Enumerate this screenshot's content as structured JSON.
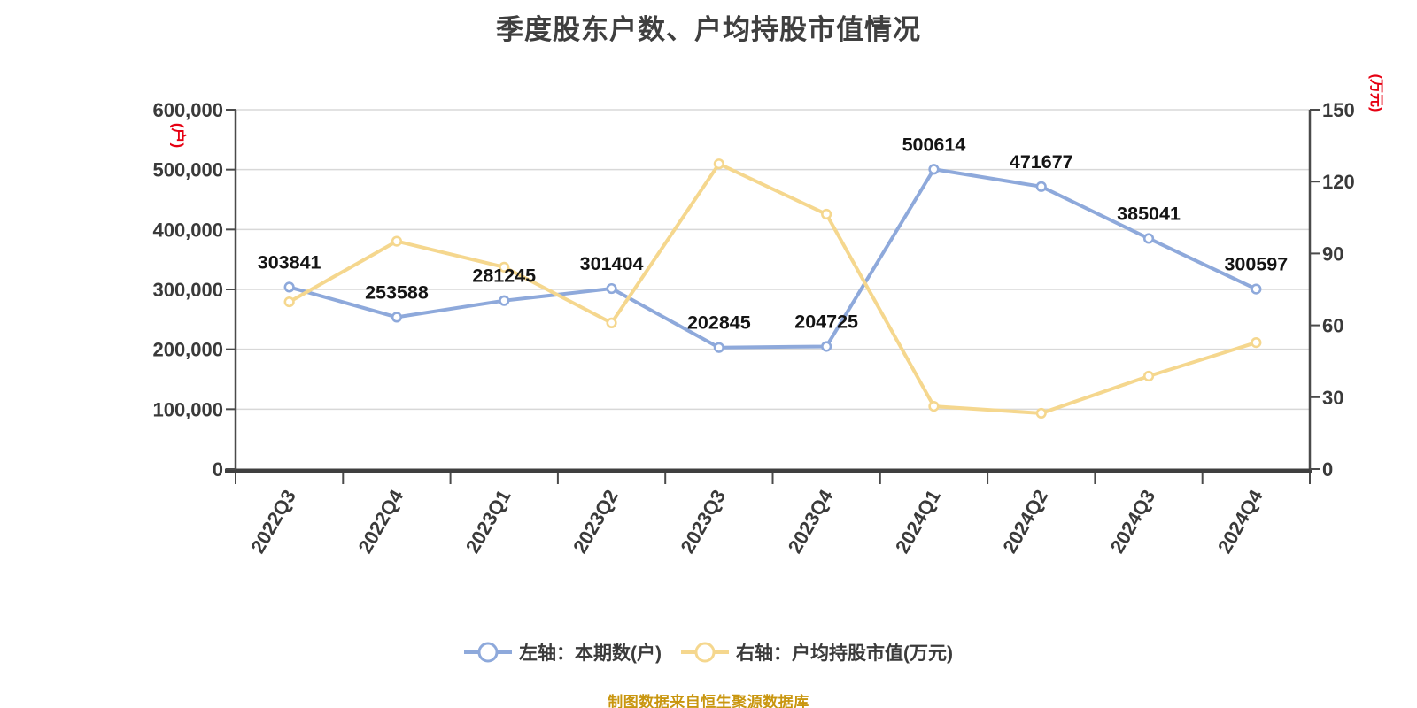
{
  "title": "季度股东户数、户均持股市值情况",
  "source_note": "制图数据来自恒生聚源数据库",
  "legend": {
    "items": [
      {
        "label": "左轴：本期数(户)"
      },
      {
        "label": "右轴：户均持股市值(万元)"
      }
    ]
  },
  "colors": {
    "series_blue": "#8EA9DB",
    "series_yellow": "#F5D78E",
    "axis_unit_red": "#E60012",
    "source_gold": "#C9960F",
    "title_gray": "#3F3F3F",
    "axis_label_gray": "#3A3A3A",
    "data_label_black": "#141414",
    "gridline_gray": "#D8D8D8",
    "axis_line_dark": "#3F3F3F",
    "axis_line_mid": "#4A4A4A",
    "marker_fill_white": "#FFFFFF"
  },
  "chart_data": {
    "type": "line",
    "title": "季度股东户数、户均持股市值情况",
    "categories": [
      "2022Q3",
      "2022Q4",
      "2023Q1",
      "2023Q2",
      "2023Q3",
      "2023Q4",
      "2024Q1",
      "2024Q2",
      "2024Q3",
      "2024Q4"
    ],
    "series": [
      {
        "name": "左轴：本期数(户)",
        "axis": "left",
        "color": "#8EA9DB",
        "marker_fill": "#FFFFFF",
        "show_point_labels": true,
        "values": [
          303841,
          253588,
          281245,
          301404,
          202845,
          204725,
          500614,
          471677,
          385041,
          300597
        ]
      },
      {
        "name": "右轴：户均持股市值(万元)",
        "axis": "right",
        "color": "#F5D78E",
        "marker_fill": "#FFFFFF",
        "show_point_labels": false,
        "values": [
          69.8,
          95.1,
          84.3,
          61.0,
          127.4,
          106.4,
          26.2,
          23.3,
          38.8,
          52.8
        ]
      }
    ],
    "left_axis": {
      "unit": "(户)",
      "min": 0,
      "max": 600000,
      "tick_labels": [
        "0",
        "100,000",
        "200,000",
        "300,000",
        "400,000",
        "500,000",
        "600,000"
      ]
    },
    "right_axis": {
      "unit": "(万元)",
      "min": 0,
      "max": 150,
      "tick_labels": [
        "0",
        "30",
        "60",
        "90",
        "120",
        "150"
      ]
    },
    "grid": "horizontal-only",
    "legend_position": "bottom"
  }
}
